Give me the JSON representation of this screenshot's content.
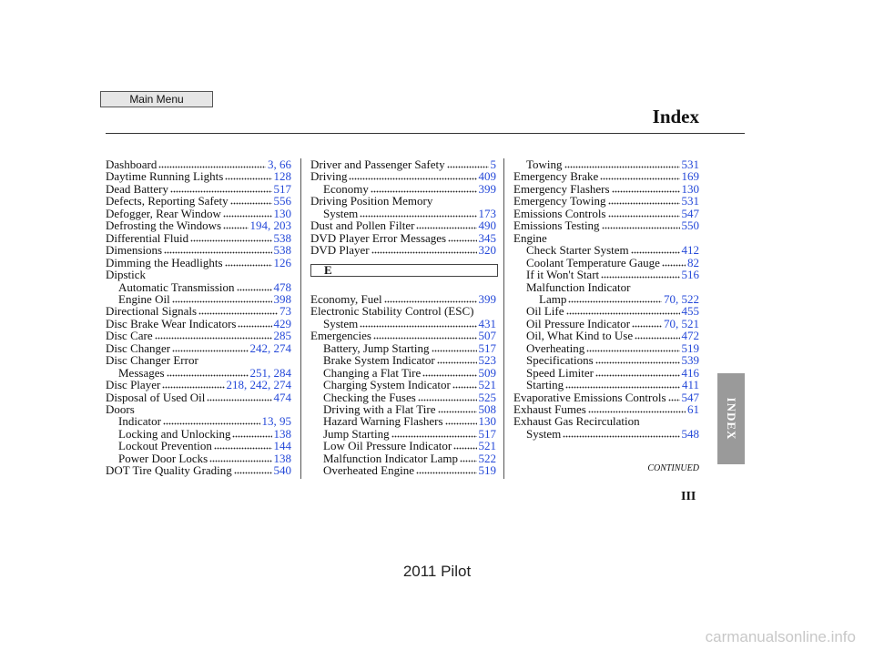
{
  "header": {
    "main_menu": "Main Menu",
    "title": "Index"
  },
  "columns": [
    {
      "sections": [
        {
          "entries": [
            {
              "text": "Dashboard",
              "pages": "3, 66"
            },
            {
              "text": "Daytime Running Lights",
              "pages": "128"
            },
            {
              "text": "Dead Battery",
              "pages": "517"
            },
            {
              "text": "Defects, Reporting Safety",
              "pages": "556"
            },
            {
              "text": "Defogger, Rear Window",
              "pages": "130"
            },
            {
              "text": "Defrosting the Windows",
              "pages": "194, 203"
            },
            {
              "text": "Differential Fluid",
              "pages": "538"
            },
            {
              "text": "Dimensions",
              "pages": "538"
            },
            {
              "text": "Dimming the Headlights",
              "pages": "126"
            },
            {
              "text": "Dipstick",
              "children": [
                {
                  "text": "Automatic Transmission",
                  "pages": "478"
                },
                {
                  "text": "Engine Oil",
                  "pages": "398"
                }
              ]
            },
            {
              "text": "Directional Signals",
              "pages": "73"
            },
            {
              "text": "Disc Brake Wear Indicators",
              "pages": "429"
            },
            {
              "text": "Disc Care",
              "pages": "285"
            },
            {
              "text": "Disc Changer",
              "pages": "242, 274"
            },
            {
              "lines": [
                "Disc Changer Error",
                "Messages"
              ],
              "pages": "251, 284"
            },
            {
              "text": "Disc Player",
              "pages": "218, 242, 274"
            },
            {
              "text": "Disposal of Used Oil",
              "pages": "474"
            },
            {
              "text": "Doors",
              "children": [
                {
                  "text": "Indicator",
                  "pages": "13, 95"
                },
                {
                  "text": "Locking and Unlocking",
                  "pages": "138"
                },
                {
                  "text": "Lockout Prevention",
                  "pages": "144"
                },
                {
                  "text": "Power Door Locks",
                  "pages": "138"
                }
              ]
            },
            {
              "text": "DOT Tire Quality Grading",
              "pages": "540"
            }
          ]
        }
      ]
    },
    {
      "sections": [
        {
          "entries": [
            {
              "text": "Driver and Passenger Safety",
              "pages": "5"
            },
            {
              "text": "Driving",
              "pages": "409",
              "children": [
                {
                  "text": "Economy",
                  "pages": "399"
                }
              ]
            },
            {
              "lines": [
                "Driving Position Memory",
                "System"
              ],
              "pages": "173"
            },
            {
              "text": "Dust and Pollen Filter",
              "pages": "490"
            },
            {
              "text": "DVD Player Error Messages",
              "pages": "345"
            },
            {
              "text": "DVD Player",
              "pages": "320"
            }
          ]
        },
        {
          "heading": "E",
          "entries": [
            {
              "text": "Economy, Fuel",
              "pages": "399"
            },
            {
              "lines": [
                "Electronic Stability Control (ESC)",
                "System"
              ],
              "pages": "431"
            },
            {
              "text": "Emergencies",
              "pages": "507",
              "children": [
                {
                  "text": "Battery, Jump Starting",
                  "pages": "517"
                },
                {
                  "text": "Brake System Indicator",
                  "pages": "523"
                },
                {
                  "text": "Changing a Flat Tire",
                  "pages": "509"
                },
                {
                  "text": "Charging System Indicator",
                  "pages": "521"
                },
                {
                  "text": "Checking the Fuses",
                  "pages": "525"
                },
                {
                  "text": "Driving with a Flat Tire",
                  "pages": "508"
                },
                {
                  "text": "Hazard Warning Flashers",
                  "pages": "130"
                },
                {
                  "text": "Jump Starting",
                  "pages": "517"
                },
                {
                  "text": "Low Oil Pressure Indicator",
                  "pages": "521"
                },
                {
                  "text": "Malfunction Indicator Lamp",
                  "pages": "522"
                },
                {
                  "text": "Overheated Engine",
                  "pages": "519"
                }
              ]
            }
          ]
        }
      ]
    },
    {
      "sections": [
        {
          "entries": [
            {
              "children": [
                {
                  "text": "Towing",
                  "pages": "531"
                }
              ]
            },
            {
              "text": "Emergency Brake",
              "pages": "169"
            },
            {
              "text": "Emergency Flashers",
              "pages": "130"
            },
            {
              "text": "Emergency Towing",
              "pages": "531"
            },
            {
              "text": "Emissions Controls",
              "pages": "547"
            },
            {
              "text": "Emissions Testing",
              "pages": "550"
            },
            {
              "text": "Engine",
              "children": [
                {
                  "text": "Check Starter System",
                  "pages": "412"
                },
                {
                  "text": "Coolant Temperature Gauge",
                  "pages": "82"
                },
                {
                  "text": "If it Won't Start",
                  "pages": "516"
                },
                {
                  "lines": [
                    "Malfunction Indicator",
                    "Lamp"
                  ],
                  "pages": "70, 522"
                },
                {
                  "text": "Oil Life",
                  "pages": "455"
                },
                {
                  "text": "Oil Pressure Indicator",
                  "pages": "70, 521"
                },
                {
                  "text": "Oil, What Kind to Use",
                  "pages": "472"
                },
                {
                  "text": "Overheating",
                  "pages": "519"
                },
                {
                  "text": "Specifications",
                  "pages": "539"
                },
                {
                  "text": "Speed Limiter",
                  "pages": "416"
                },
                {
                  "text": "Starting",
                  "pages": "411"
                }
              ]
            },
            {
              "text": "Evaporative Emissions Controls",
              "pages": "547"
            },
            {
              "text": "Exhaust Fumes",
              "pages": "61"
            },
            {
              "lines": [
                "Exhaust Gas Recirculation",
                "System"
              ],
              "pages": "548"
            }
          ]
        }
      ]
    }
  ],
  "continued": "CONTINUED",
  "page_number": "III",
  "side_tab": "INDEX",
  "footer": "2011 Pilot",
  "watermark": "carmanualsonline.info"
}
